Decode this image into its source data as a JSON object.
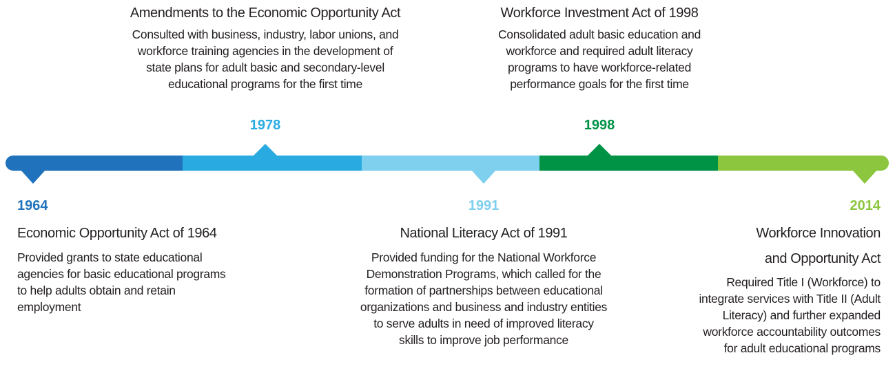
{
  "events": [
    {
      "year": "1964",
      "title": [
        "Economic Opportunity Act of 1964"
      ],
      "description": [
        "Provided grants to state educational",
        "agencies for basic educational programs",
        "to help adults obtain and retain",
        "employment"
      ]
    },
    {
      "year": "1978",
      "title": [
        "Amendments to the Economic Opportunity Act"
      ],
      "description": [
        "Consulted with business, industry, labor unions, and",
        "workforce training agencies in the development of",
        "state plans for adult basic and secondary-level",
        "educational programs for the first time"
      ]
    },
    {
      "year": "1991",
      "title": [
        "National Literacy Act of 1991"
      ],
      "description": [
        "Provided funding for the National Workforce",
        "Demonstration Programs, which called for the",
        "formation of partnerships between educational",
        "organizations and business and industry entities",
        "to serve adults in need of improved literacy",
        "skills to improve job performance"
      ]
    },
    {
      "year": "1998",
      "title": [
        "Workforce Investment Act of 1998"
      ],
      "description": [
        "Consolidated adult basic education and",
        "workforce and required adult literacy",
        "programs to have workforce-related",
        "performance goals for the first time"
      ]
    },
    {
      "year": "2014",
      "title": [
        "Workforce Innovation",
        "and Opportunity Act"
      ],
      "description": [
        "Required Title I (Workforce) to",
        "integrate services with Title II (Adult",
        "Literacy) and further expanded",
        "workforce accountability outcomes",
        "for adult educational programs"
      ]
    }
  ]
}
